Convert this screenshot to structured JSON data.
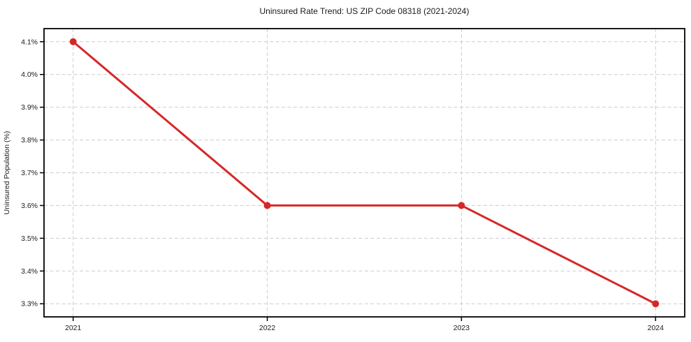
{
  "figure": {
    "background": "#ffffff"
  },
  "chart_data": {
    "type": "line",
    "title": "Uninsured Rate Trend: US ZIP Code 08318 (2021-2024)",
    "xlabel": "",
    "ylabel": "Uninsured Population (%)",
    "x": [
      2021,
      2022,
      2023,
      2024
    ],
    "x_tick_labels": [
      "2021",
      "2022",
      "2023",
      "2024"
    ],
    "series": [
      {
        "values": [
          4.1,
          3.6,
          3.6,
          3.3
        ],
        "color": "#d62728",
        "marker": "circle",
        "line_width": 3,
        "marker_radius": 5
      }
    ],
    "yticks": [
      3.3,
      3.4,
      3.5,
      3.6,
      3.7,
      3.8,
      3.9,
      4.0,
      4.1
    ],
    "y_tick_labels": [
      "3.3%",
      "3.4%",
      "3.5%",
      "3.6%",
      "3.7%",
      "3.8%",
      "3.9%",
      "4.0%",
      "4.1%"
    ],
    "xlim": [
      2020.85,
      2024.15
    ],
    "ylim": [
      3.26,
      4.14
    ],
    "grid": true,
    "grid_color": "#cccccc",
    "grid_style": "dashed",
    "legend": null,
    "axis_color": "#000000",
    "text_color": "#1a1a1a"
  }
}
